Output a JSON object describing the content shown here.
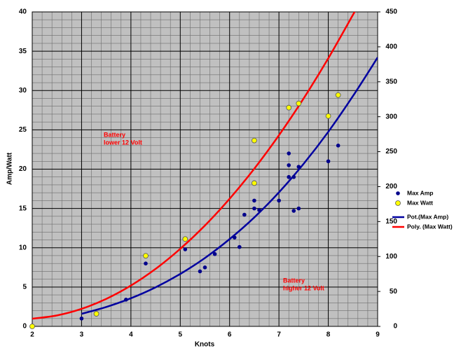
{
  "chart_data": {
    "type": "scatter",
    "x_label": "Knots",
    "y_label": "Amp/Watt",
    "xlim": [
      2,
      9
    ],
    "xticks": [
      2,
      3,
      4,
      5,
      6,
      7,
      8,
      9
    ],
    "ylim": [
      0,
      40
    ],
    "yticks": [
      0,
      5,
      10,
      15,
      20,
      25,
      30,
      35,
      40
    ],
    "y2lim": [
      0,
      450
    ],
    "y2ticks": [
      0,
      50,
      100,
      150,
      200,
      250,
      300,
      350,
      400,
      450
    ],
    "grid": true,
    "minor_grid": true,
    "legend": "right",
    "series": [
      {
        "name": "Max Amp",
        "color": "#00008b",
        "marker": "dot",
        "x": [
          3,
          3.9,
          4.3,
          5.1,
          5.4,
          5.5,
          5.7,
          6.1,
          6.2,
          6.3,
          6.5,
          6.5,
          6.5,
          6.6,
          7,
          7.2,
          7.2,
          7.2,
          7.3,
          7.3,
          7.4,
          7.4,
          8,
          8.2
        ],
        "values": [
          1,
          3.4,
          8,
          9.8,
          7,
          7.5,
          9.2,
          11.3,
          10.1,
          14.2,
          15,
          16,
          18.3,
          14.8,
          16,
          22,
          20.5,
          19,
          19,
          14.7,
          15,
          20.3,
          21,
          23
        ]
      },
      {
        "name": "Max Watt",
        "color": "#ffff00",
        "marker": "circle",
        "axis": "y2",
        "x": [
          2,
          3.3,
          4.3,
          5.1,
          6.5,
          6.5,
          7.2,
          7.4,
          8,
          8.2
        ],
        "values": [
          0,
          18,
          101,
          125,
          266,
          205,
          313,
          319,
          301,
          331
        ]
      },
      {
        "name": "Pot.(Max Amp)",
        "color": "#0000a0",
        "marker": "line",
        "x": [
          3,
          3.5,
          4,
          4.5,
          5,
          5.5,
          6,
          6.5,
          7,
          7.5,
          8,
          8.5,
          9
        ],
        "values": [
          1.6,
          2.47,
          3.58,
          4.97,
          6.67,
          8.7,
          11.1,
          13.86,
          17.05,
          20.68,
          24.75,
          29.3,
          34.2
        ]
      },
      {
        "name": "Poly. (Max Watt)",
        "color": "#ff0000",
        "marker": "line",
        "axis": "y2",
        "x": [
          2,
          2.5,
          3,
          3.5,
          4,
          4.5,
          5,
          5.5,
          6,
          6.5,
          7,
          7.5,
          8,
          8.5,
          8.55
        ],
        "values": [
          11,
          15.65,
          25.1,
          39.35,
          58.4,
          82.25,
          111,
          144.35,
          182.6,
          225.65,
          273.5,
          326.15,
          383.6,
          445.85,
          452.4
        ]
      }
    ],
    "annotations": [
      {
        "lines": [
          "Battery",
          "lower 12 Volt"
        ],
        "color": "#ff0000"
      },
      {
        "lines": [
          "Battery",
          "higher 12 Volt"
        ],
        "color": "#ff0000"
      }
    ]
  }
}
